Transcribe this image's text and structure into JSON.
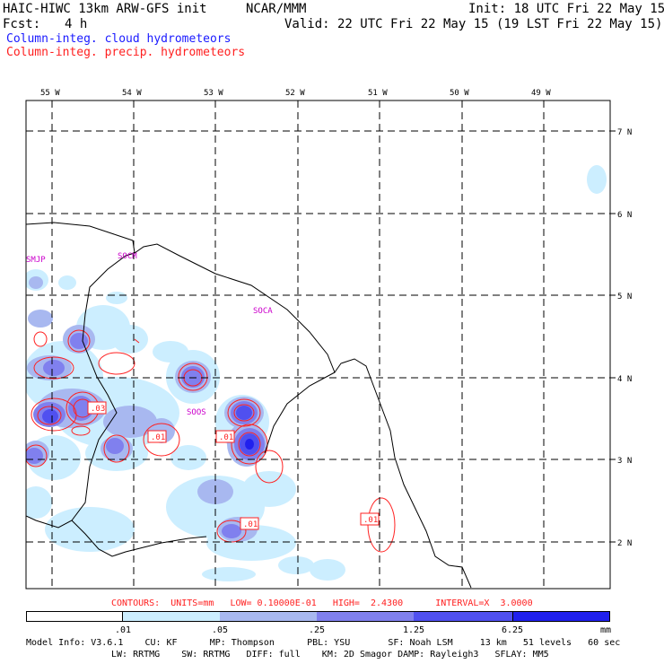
{
  "header": {
    "model": "HAIC-HIWC 13km ARW-GFS init",
    "org": "NCAR/MMM",
    "init": "Init: 18 UTC Fri 22 May 15",
    "fcst_label": "Fcst:",
    "fcst_value": "4 h",
    "valid": "Valid: 22 UTC Fri 22 May 15 (19 LST Fri 22 May 15)"
  },
  "legend": {
    "cloud": "Column-integ. cloud hydrometeors",
    "precip": "Column-integ. precip. hydrometeors",
    "cloud_color": "#1a1aff",
    "precip_color": "#ff2020"
  },
  "map": {
    "lon_labels": [
      "55 W",
      "54 W",
      "53 W",
      "52 W",
      "51 W",
      "50 W",
      "49 W"
    ],
    "lat_labels": [
      "7 N",
      "6 N",
      "5 N",
      "4 N",
      "3 N",
      "2 N"
    ],
    "stations": [
      "SMJP",
      "SOCM",
      "SOCA",
      "SOOS"
    ],
    "contour_labels": [
      ".03",
      ".01",
      ".01",
      ".01",
      ".01"
    ]
  },
  "contours_line": "CONTOURS:  UNITS=mm   LOW= 0.10000E-01   HIGH=  2.4300      INTERVAL=X  3.0000",
  "colorbar": {
    "labels": [
      ".01",
      ".05",
      ".25",
      "1.25",
      "6.25"
    ],
    "units": "mm",
    "colors": [
      "#ffffff",
      "#cceeff",
      "#a8b8f0",
      "#8080ee",
      "#5050f0",
      "#2020ee"
    ]
  },
  "footer": {
    "line1": "Model Info: V3.6.1    CU: KF      MP: Thompson      PBL: YSU       SF: Noah LSM     13 km   51 levels   60 sec",
    "line2": "LW: RRTMG    SW: RRTMG   DIFF: full    KM: 2D Smagor DAMP: Rayleigh3   SFLAY: MM5"
  }
}
